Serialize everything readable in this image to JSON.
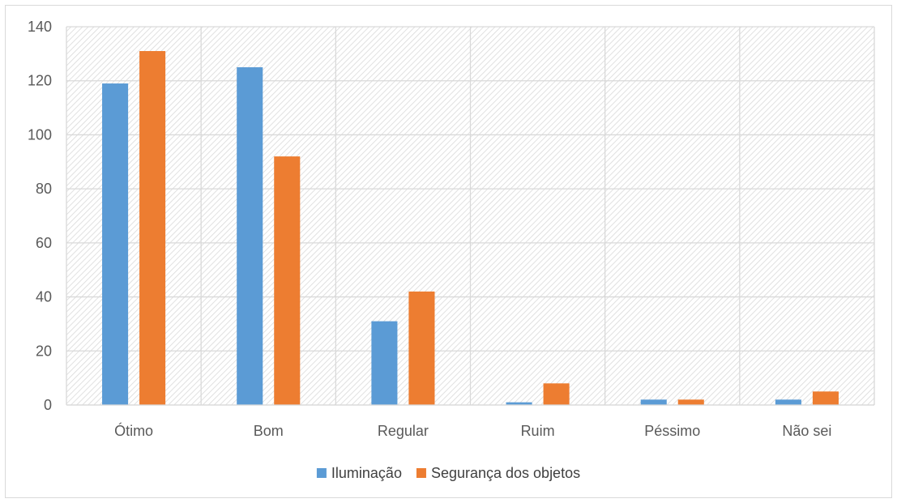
{
  "chart_data": {
    "type": "bar",
    "categories": [
      "Ótimo",
      "Bom",
      "Regular",
      "Ruim",
      "Péssimo",
      "Não sei"
    ],
    "series": [
      {
        "name": "Iluminação",
        "color": "#5b9bd5",
        "values": [
          119,
          125,
          31,
          1,
          2,
          2
        ]
      },
      {
        "name": "Segurança dos objetos",
        "color": "#ed7d31",
        "values": [
          131,
          92,
          42,
          8,
          2,
          5
        ]
      }
    ],
    "ylim": [
      0,
      140
    ],
    "yticks": [
      0,
      20,
      40,
      60,
      80,
      100,
      120,
      140
    ],
    "grid": true,
    "background": "hatched",
    "legend": "bottom-center",
    "title": "",
    "xlabel": "",
    "ylabel": ""
  }
}
